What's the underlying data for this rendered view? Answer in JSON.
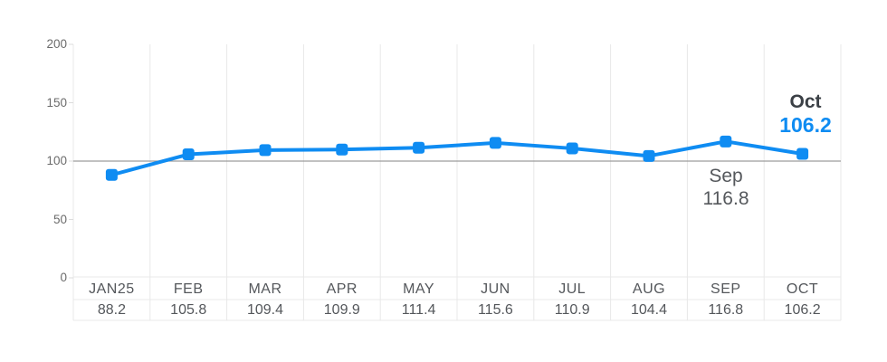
{
  "chart_data": {
    "type": "line",
    "categories": [
      "JAN25",
      "FEB",
      "MAR",
      "APR",
      "MAY",
      "JUN",
      "JUL",
      "AUG",
      "SEP",
      "OCT"
    ],
    "values": [
      88.2,
      105.8,
      109.4,
      109.9,
      111.4,
      115.6,
      110.9,
      104.4,
      116.8,
      106.2
    ],
    "title": "",
    "xlabel": "",
    "ylabel": "",
    "ylim": [
      0,
      200
    ],
    "yticks": [
      0,
      50,
      100,
      150,
      200
    ],
    "ref_line": 100,
    "grid": "vertical column gridlines, single horizontal reference line at 100",
    "legend": "none",
    "line_color": "#0f8cf2",
    "marker_shape": "rounded-square",
    "ref_line_color": "#9c9c9c",
    "gridline_color": "#e8e8e8",
    "annotation_sep": {
      "label": "Sep",
      "value": "116.8"
    },
    "annotation_oct": {
      "label": "Oct",
      "value": "106.2"
    }
  },
  "colors": {
    "accent_blue": "#0f8cf2",
    "text_gray": "#54575b",
    "axis_gray": "#6b6b6b",
    "dark_label": "#3b4046"
  }
}
